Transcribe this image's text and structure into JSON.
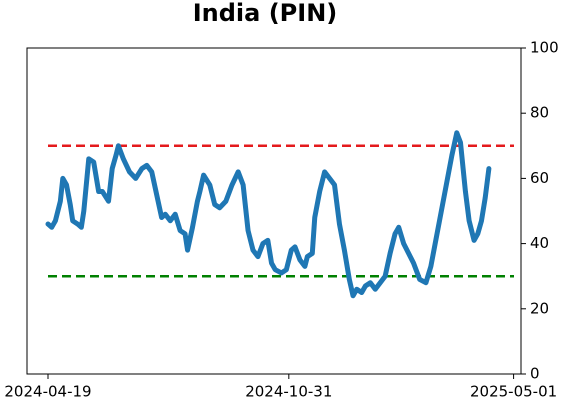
{
  "chart_data": {
    "type": "line",
    "title": "India (PIN)",
    "x": [
      "2024-04-19",
      "2024-04-22",
      "2024-04-25",
      "2024-04-29",
      "2024-05-01",
      "2024-05-04",
      "2024-05-07",
      "2024-05-09",
      "2024-05-13",
      "2024-05-16",
      "2024-05-18",
      "2024-05-22",
      "2024-05-26",
      "2024-05-30",
      "2024-06-02",
      "2024-06-07",
      "2024-06-10",
      "2024-06-13",
      "2024-06-15",
      "2024-06-19",
      "2024-06-24",
      "2024-06-29",
      "2024-07-04",
      "2024-07-08",
      "2024-07-12",
      "2024-07-16",
      "2024-07-20",
      "2024-07-23",
      "2024-07-27",
      "2024-07-31",
      "2024-08-04",
      "2024-08-08",
      "2024-08-10",
      "2024-08-14",
      "2024-08-18",
      "2024-08-20",
      "2024-08-23",
      "2024-08-28",
      "2024-09-01",
      "2024-09-05",
      "2024-09-10",
      "2024-09-15",
      "2024-09-20",
      "2024-09-24",
      "2024-09-28",
      "2024-10-02",
      "2024-10-06",
      "2024-10-10",
      "2024-10-14",
      "2024-10-17",
      "2024-10-20",
      "2024-10-25",
      "2024-10-29",
      "2024-11-02",
      "2024-11-05",
      "2024-11-09",
      "2024-11-13",
      "2024-11-15",
      "2024-11-19",
      "2024-11-21",
      "2024-11-25",
      "2024-11-29",
      "2024-12-03",
      "2024-12-07",
      "2024-12-11",
      "2024-12-15",
      "2024-12-19",
      "2024-12-22",
      "2024-12-25",
      "2024-12-29",
      "2025-01-01",
      "2025-01-05",
      "2025-01-09",
      "2025-01-13",
      "2025-01-17",
      "2025-01-21",
      "2025-01-25",
      "2025-01-28",
      "2025-02-01",
      "2025-02-05",
      "2025-02-09",
      "2025-02-14",
      "2025-02-19",
      "2025-02-23",
      "2025-02-26",
      "2025-03-02",
      "2025-03-07",
      "2025-03-12",
      "2025-03-16",
      "2025-03-19",
      "2025-03-23",
      "2025-03-26",
      "2025-03-30",
      "2025-04-02",
      "2025-04-05",
      "2025-04-08",
      "2025-04-11"
    ],
    "series": [
      {
        "color": "#1f77b4",
        "values": [
          46,
          45,
          47,
          53,
          60,
          58,
          52,
          47,
          46,
          45,
          50,
          66,
          65,
          56,
          56,
          53,
          63,
          67,
          70,
          66,
          62,
          60,
          63,
          64,
          62,
          55,
          48,
          49,
          47,
          49,
          44,
          43,
          38,
          45,
          53,
          56,
          61,
          58,
          52,
          51,
          53,
          58,
          62,
          58,
          44,
          38,
          36,
          40,
          41,
          34,
          32,
          31,
          32,
          38,
          39,
          35,
          33,
          36,
          37,
          48,
          56,
          62,
          60,
          58,
          46,
          38,
          29,
          24,
          26,
          25,
          27,
          28,
          26,
          28,
          30,
          37,
          43,
          45,
          40,
          37,
          34,
          29,
          28,
          33,
          39,
          47,
          57,
          67,
          74,
          71,
          56,
          47,
          41,
          43,
          47,
          54,
          63
        ]
      }
    ],
    "hlines": [
      {
        "value": 70,
        "color": "#e41a1c"
      },
      {
        "value": 30,
        "color": "#008000"
      }
    ],
    "xlim": [
      "2024-04-02",
      "2025-05-07"
    ],
    "xticks": [
      "2024-04-19",
      "2024-10-31",
      "2025-05-01"
    ],
    "ylim": [
      0,
      100
    ],
    "yticks": [
      0,
      20,
      40,
      60,
      80,
      100
    ],
    "y_axis_side": "right"
  }
}
